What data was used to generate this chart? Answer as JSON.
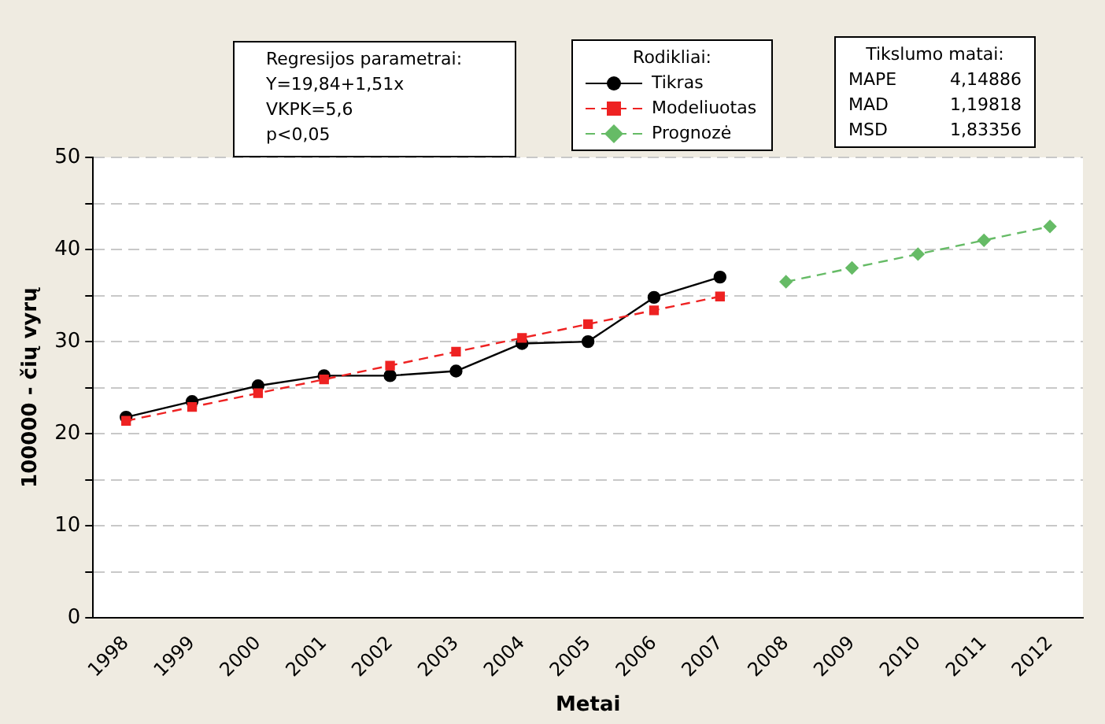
{
  "chart_data": {
    "type": "line",
    "xlabel": "Metai",
    "ylabel": "100000 - čių vyrų",
    "legend_title": "Rodikliai:",
    "legend": "top",
    "categories": [
      "1998",
      "1999",
      "2000",
      "2001",
      "2002",
      "2003",
      "2004",
      "2005",
      "2006",
      "2007",
      "2008",
      "2009",
      "2010",
      "2011",
      "2012"
    ],
    "series": [
      {
        "name": "Tikras",
        "color": "#000000",
        "marker": "circle",
        "line_style": "solid",
        "values": [
          21.8,
          23.5,
          25.2,
          26.3,
          26.3,
          26.8,
          29.8,
          30.0,
          34.8,
          37.0,
          null,
          null,
          null,
          null,
          null
        ]
      },
      {
        "name": "Modeliuotas",
        "color": "#ee2222",
        "marker": "square",
        "line_style": "dashed",
        "values": [
          21.4,
          22.9,
          24.4,
          25.9,
          27.4,
          28.9,
          30.4,
          31.9,
          33.4,
          34.9,
          null,
          null,
          null,
          null,
          null
        ]
      },
      {
        "name": "Prognozė",
        "color": "#66bb66",
        "marker": "diamond",
        "line_style": "dashed",
        "values": [
          null,
          null,
          null,
          null,
          null,
          null,
          null,
          null,
          null,
          null,
          36.5,
          38.0,
          39.5,
          41.0,
          42.5
        ]
      }
    ],
    "ylim": [
      0,
      50
    ],
    "yticks": [
      0,
      {
        "value": 5,
        "label": null
      },
      10,
      {
        "value": 15,
        "label": null
      },
      20,
      {
        "value": 25,
        "label": null
      },
      30,
      {
        "value": 35,
        "label": null
      },
      40,
      {
        "value": 45,
        "label": null
      },
      50
    ],
    "grid": "y",
    "annotations": [
      "Regresijos parametrai:",
      "Y=19,84+1,51x",
      "VKPK=5,6",
      "p<0,05",
      "Tikslumo matai:",
      "MAPE 4,14886",
      "MAD 1,19818",
      "MSD 1,83356"
    ]
  }
}
